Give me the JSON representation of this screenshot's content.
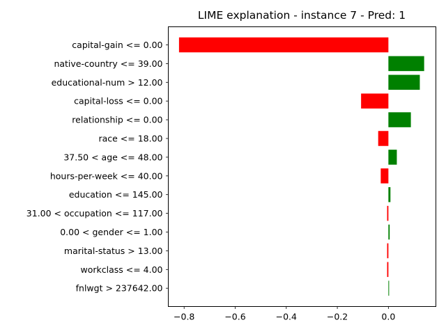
{
  "chart_data": {
    "type": "bar",
    "orientation": "horizontal",
    "title": "LIME explanation - instance 7 - Pred: 1",
    "xlabel": "",
    "ylabel": "",
    "xlim": [
      -0.862,
      0.186
    ],
    "xticks": [
      -0.8,
      -0.6,
      -0.4,
      -0.2,
      0.0
    ],
    "xtick_labels": [
      "−0.8",
      "−0.6",
      "−0.4",
      "−0.2",
      "0.0"
    ],
    "grid": false,
    "legend": false,
    "colors": {
      "positive": "#008000",
      "negative": "#ff0000"
    },
    "categories": [
      "capital-gain <= 0.00",
      "native-country <= 39.00",
      "educational-num > 12.00",
      "capital-loss <= 0.00",
      "relationship <= 0.00",
      "race <= 18.00",
      "37.50 < age <= 48.00",
      "hours-per-week <= 40.00",
      "education <= 145.00",
      "31.00 < occupation <= 117.00",
      "0.00 < gender <= 1.00",
      "marital-status > 13.00",
      "workclass <= 4.00",
      "fnlwgt > 237642.00"
    ],
    "values": [
      -0.82,
      0.14,
      0.123,
      -0.107,
      0.088,
      -0.04,
      0.033,
      -0.03,
      0.008,
      -0.005,
      0.005,
      -0.005,
      -0.005,
      0.002
    ]
  }
}
